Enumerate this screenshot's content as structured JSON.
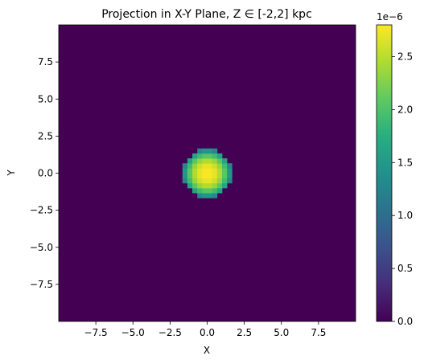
{
  "chart_data": {
    "type": "heatmap",
    "title": "Projection in X-Y Plane, Z ∈ [-2,2] kpc",
    "xlabel": "X",
    "ylabel": "Y",
    "xlim": [
      -10,
      10
    ],
    "ylim": [
      -10,
      10
    ],
    "grid": false,
    "colormap": "viridis",
    "x_ticks": [
      -7.5,
      -5.0,
      -2.5,
      0.0,
      2.5,
      5.0,
      7.5
    ],
    "x_tick_labels": [
      "−7.5",
      "−5.0",
      "−2.5",
      "0.0",
      "2.5",
      "5.0",
      "7.5"
    ],
    "y_ticks": [
      7.5,
      5.0,
      2.5,
      0.0,
      -2.5,
      -5.0,
      -7.5
    ],
    "y_tick_labels": [
      "7.5",
      "5.0",
      "2.5",
      "0.0",
      "−2.5",
      "−5.0",
      "−7.5"
    ],
    "colorbar": {
      "min": 0.0,
      "max": 2.8e-06,
      "offset_text": "1e−6",
      "ticks": [
        0.0,
        0.5,
        1.0,
        1.5,
        2.0,
        2.5
      ],
      "tick_labels": [
        "0.0",
        "0.5",
        "1.0",
        "1.5",
        "2.0",
        "2.5"
      ]
    },
    "blob": {
      "center": [
        0.0,
        0.0
      ],
      "peak_value": 2.8e-06,
      "cutoff_radius": 1.6,
      "grid_bins": 60
    }
  }
}
